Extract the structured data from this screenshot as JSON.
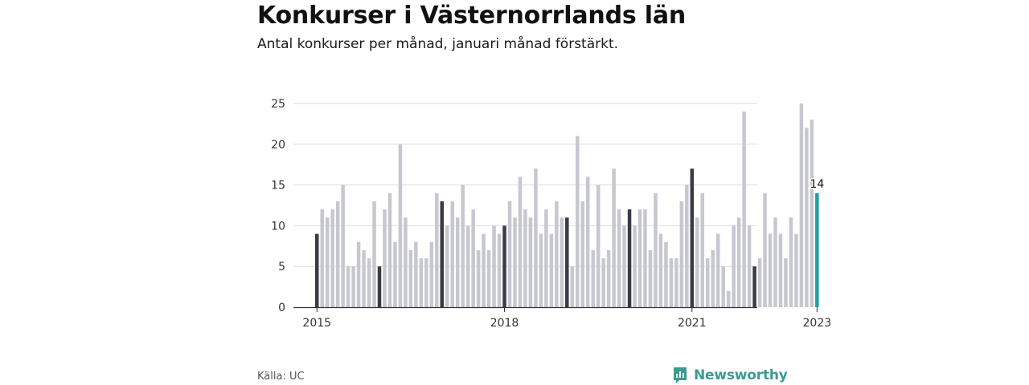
{
  "title": "Konkurser i Västernorrlands län",
  "subtitle": "Antal konkurser per månad, januari månad förstärkt.",
  "source": "Källa: UC",
  "brand": "Newsworthy",
  "colors": {
    "bar": "#c7c7d0",
    "january": "#3a3b47",
    "latest": "#21a19a",
    "grid": "#dddddd",
    "brand": "#3c9b91"
  },
  "chart_data": {
    "type": "bar",
    "title": "Konkurser i Västernorrlands län",
    "xlabel": "",
    "ylabel": "",
    "start": "2015-01",
    "ylim": [
      0,
      25
    ],
    "yticks": [
      0,
      5,
      10,
      15,
      20,
      25
    ],
    "xticks": [
      {
        "label": "2015",
        "index": 0
      },
      {
        "label": "2018",
        "index": 36
      },
      {
        "label": "2021",
        "index": 72
      },
      {
        "label": "2023",
        "index": 96
      }
    ],
    "annotation": {
      "index": 96,
      "label": "14"
    },
    "values": [
      9,
      12,
      11,
      12,
      13,
      15,
      5,
      5,
      8,
      7,
      6,
      13,
      5,
      12,
      14,
      8,
      20,
      11,
      7,
      8,
      6,
      6,
      8,
      14,
      13,
      10,
      13,
      11,
      15,
      10,
      12,
      7,
      9,
      7,
      10,
      9,
      10,
      13,
      11,
      16,
      12,
      11,
      17,
      9,
      12,
      9,
      13,
      11,
      11,
      5,
      21,
      13,
      16,
      7,
      15,
      6,
      7,
      17,
      12,
      10,
      12,
      10,
      12,
      12,
      7,
      14,
      9,
      8,
      6,
      6,
      13,
      15,
      17,
      11,
      14,
      6,
      7,
      9,
      5,
      2,
      10,
      11,
      24,
      10,
      5,
      6,
      14,
      9,
      11,
      9,
      6,
      11,
      9,
      25,
      22,
      23,
      14
    ]
  }
}
